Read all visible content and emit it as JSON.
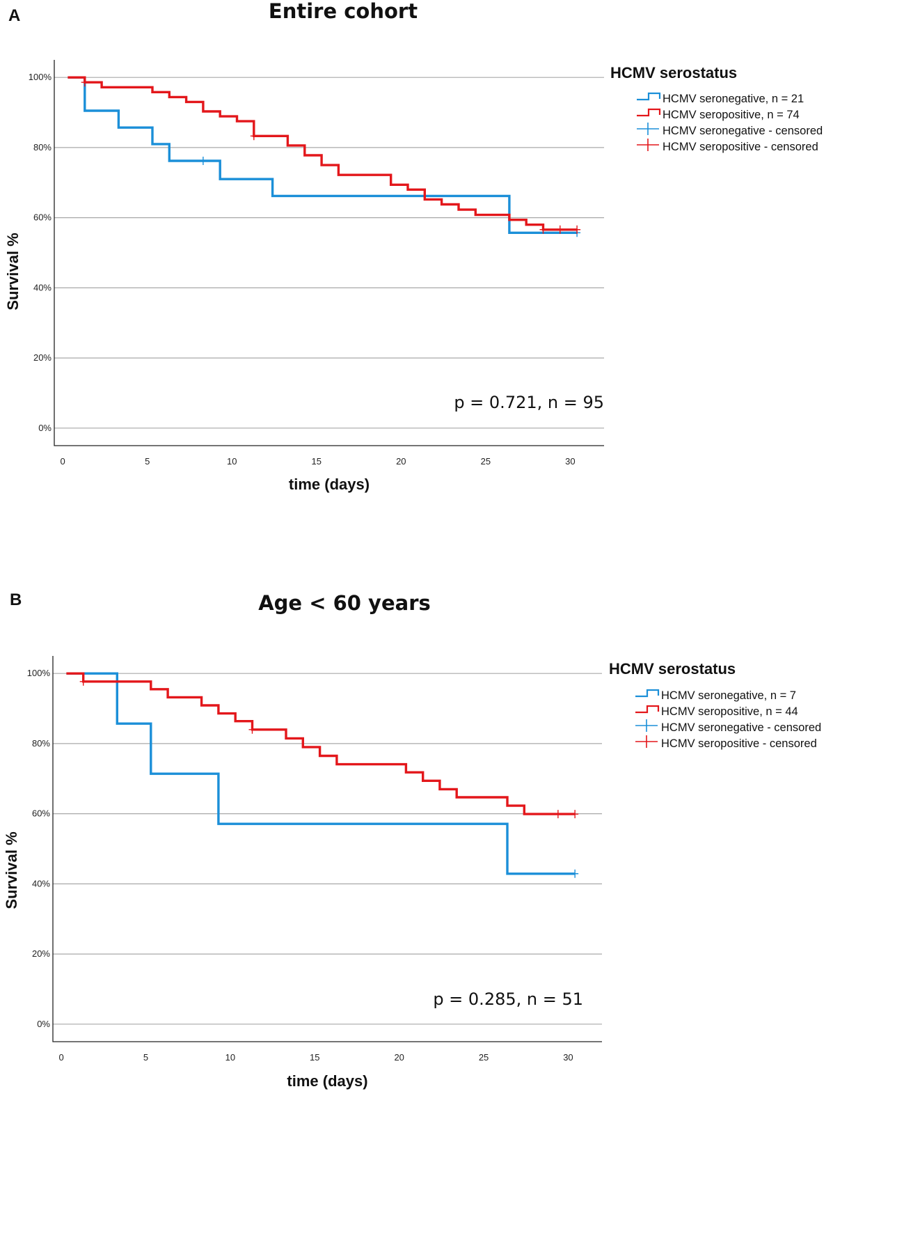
{
  "chart_data": [
    {
      "type": "line",
      "subtype": "kaplan-meier",
      "panel_label": "A",
      "title": "Entire cohort",
      "xlabel": "time (days)",
      "ylabel": "Survival %",
      "xlim": [
        -0.5,
        32.0
      ],
      "ylim": [
        -5,
        105
      ],
      "xticks": [
        0,
        5,
        10,
        15,
        20,
        25,
        30
      ],
      "yticks": [
        0,
        20,
        40,
        60,
        80,
        100
      ],
      "ytick_labels": [
        "0%",
        "20%",
        "40%",
        "60%",
        "80%",
        "100%"
      ],
      "grid": true,
      "legend_title": "HCMV serostatus",
      "legend": [
        {
          "label": "HCMV seronegative, n = 21",
          "color": "#1b8fd8",
          "kind": "step"
        },
        {
          "label": "HCMV seropositive, n = 74",
          "color": "#e3171b",
          "kind": "step"
        },
        {
          "label": "HCMV seronegative - censored",
          "color": "#1b8fd8",
          "kind": "censor"
        },
        {
          "label": "HCMV seropositive - censored",
          "color": "#e3171b",
          "kind": "censor"
        }
      ],
      "annotation": "p = 0.721, n = 95",
      "series": [
        {
          "name": "HCMV seronegative, n = 21",
          "color": "#1b8fd8",
          "steps": [
            [
              0.3,
              100
            ],
            [
              1.3,
              90.5
            ],
            [
              3.3,
              85.7
            ],
            [
              5.3,
              81.0
            ],
            [
              6.3,
              76.2
            ],
            [
              9.3,
              71.0
            ],
            [
              12.4,
              66.2
            ],
            [
              26.4,
              55.7
            ],
            [
              30.4,
              55.7
            ]
          ],
          "censored": [
            [
              8.3,
              76.2
            ],
            [
              30.4,
              55.7
            ]
          ]
        },
        {
          "name": "HCMV seropositive, n = 74",
          "color": "#e3171b",
          "steps": [
            [
              0.3,
              100
            ],
            [
              1.3,
              98.6
            ],
            [
              2.3,
              97.2
            ],
            [
              5.3,
              95.8
            ],
            [
              6.3,
              94.4
            ],
            [
              7.3,
              93.0
            ],
            [
              8.3,
              90.3
            ],
            [
              9.3,
              88.9
            ],
            [
              10.3,
              87.5
            ],
            [
              11.3,
              83.3
            ],
            [
              13.3,
              80.6
            ],
            [
              14.3,
              77.8
            ],
            [
              15.3,
              75.0
            ],
            [
              16.3,
              72.2
            ],
            [
              19.4,
              69.4
            ],
            [
              20.4,
              68.0
            ],
            [
              21.4,
              65.2
            ],
            [
              22.4,
              63.8
            ],
            [
              23.4,
              62.3
            ],
            [
              24.4,
              60.8
            ],
            [
              26.4,
              59.4
            ],
            [
              27.4,
              58.0
            ],
            [
              28.4,
              56.6
            ],
            [
              30.4,
              56.6
            ]
          ],
          "censored": [
            [
              1.3,
              98.6
            ],
            [
              11.3,
              83.3
            ],
            [
              28.4,
              56.6
            ],
            [
              29.4,
              56.6
            ],
            [
              30.4,
              56.6
            ]
          ]
        }
      ]
    },
    {
      "type": "line",
      "subtype": "kaplan-meier",
      "panel_label": "B",
      "title": "Age < 60 years",
      "xlabel": "time (days)",
      "ylabel": "Survival %",
      "xlim": [
        -0.5,
        32.0
      ],
      "ylim": [
        -5,
        105
      ],
      "xticks": [
        0,
        5,
        10,
        15,
        20,
        25,
        30
      ],
      "yticks": [
        0,
        20,
        40,
        60,
        80,
        100
      ],
      "ytick_labels": [
        "0%",
        "20%",
        "40%",
        "60%",
        "80%",
        "100%"
      ],
      "grid": true,
      "legend_title": "HCMV serostatus",
      "legend": [
        {
          "label": "HCMV seronegative, n = 7",
          "color": "#1b8fd8",
          "kind": "step"
        },
        {
          "label": "HCMV seropositive, n = 44",
          "color": "#e3171b",
          "kind": "step"
        },
        {
          "label": "HCMV seronegative - censored",
          "color": "#1b8fd8",
          "kind": "censor"
        },
        {
          "label": "HCMV seropositive - censored",
          "color": "#e3171b",
          "kind": "censor"
        }
      ],
      "annotation": "p = 0.285, n = 51",
      "series": [
        {
          "name": "HCMV seronegative, n = 7",
          "color": "#1b8fd8",
          "steps": [
            [
              0.3,
              100
            ],
            [
              3.3,
              85.7
            ],
            [
              5.3,
              71.4
            ],
            [
              9.3,
              57.1
            ],
            [
              26.4,
              42.9
            ],
            [
              30.4,
              42.9
            ]
          ],
          "censored": [
            [
              30.4,
              42.9
            ]
          ]
        },
        {
          "name": "HCMV seropositive, n = 44",
          "color": "#e3171b",
          "steps": [
            [
              0.3,
              100
            ],
            [
              1.3,
              97.7
            ],
            [
              5.3,
              95.5
            ],
            [
              6.3,
              93.2
            ],
            [
              8.3,
              90.9
            ],
            [
              9.3,
              88.6
            ],
            [
              10.3,
              86.4
            ],
            [
              11.3,
              84.0
            ],
            [
              13.3,
              81.5
            ],
            [
              14.3,
              79.0
            ],
            [
              15.3,
              76.5
            ],
            [
              16.3,
              74.1
            ],
            [
              20.4,
              71.8
            ],
            [
              21.4,
              69.4
            ],
            [
              22.4,
              67.0
            ],
            [
              23.4,
              64.7
            ],
            [
              26.4,
              62.3
            ],
            [
              27.4,
              59.9
            ],
            [
              30.4,
              59.9
            ]
          ],
          "censored": [
            [
              1.3,
              97.7
            ],
            [
              11.3,
              84.0
            ],
            [
              29.4,
              59.9
            ],
            [
              30.4,
              59.9
            ]
          ]
        }
      ]
    }
  ]
}
